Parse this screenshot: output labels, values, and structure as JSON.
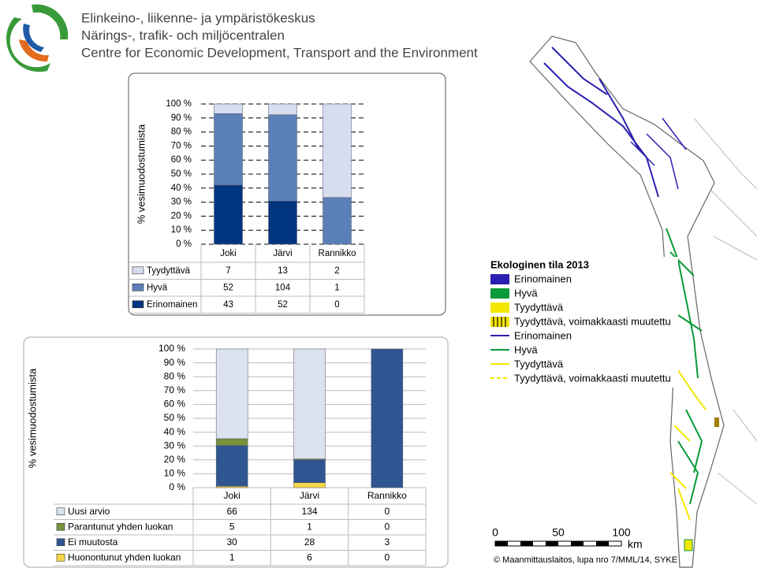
{
  "header": {
    "lines": [
      "Elinkeino-, liikenne- ja ympäristökeskus",
      "Närings-, trafik- och miljöcentralen",
      "Centre for Economic Development, Transport and the Environment"
    ]
  },
  "chart_data": [
    {
      "type": "stacked-percent-bar",
      "y_label": "% vesimuodostumista",
      "categories": [
        "Joki",
        "Järvi",
        "Rannikko"
      ],
      "series": [
        {
          "name": "Erinomainen",
          "color": "#003580",
          "values": [
            43,
            52,
            0
          ]
        },
        {
          "name": "Hyvä",
          "color": "#5b80b8",
          "values": [
            52,
            104,
            1
          ]
        },
        {
          "name": "Tyydyttävä",
          "color": "#d5ddee",
          "values": [
            7,
            13,
            2
          ]
        }
      ],
      "ylim": [
        0,
        100
      ],
      "yticks": [
        {
          "value": 0,
          "label": "0 %"
        },
        {
          "value": 10,
          "label": "10 %"
        },
        {
          "value": 20,
          "label": "20 %"
        },
        {
          "value": 30,
          "label": "30 %"
        },
        {
          "value": 40,
          "label": "40 %"
        },
        {
          "value": 50,
          "label": "50 %"
        },
        {
          "value": 60,
          "label": "60 %"
        },
        {
          "value": 70,
          "label": "70 %"
        },
        {
          "value": 80,
          "label": "80 %"
        },
        {
          "value": 90,
          "label": "90 %"
        },
        {
          "value": 100,
          "label": "100 %"
        }
      ],
      "grid": true
    },
    {
      "type": "stacked-percent-bar",
      "y_label": "% vesimuodostumista",
      "categories": [
        "Joki",
        "Järvi",
        "Rannikko"
      ],
      "series": [
        {
          "name": "Huonontunut yhden luokan",
          "color": "#f6d745",
          "values": [
            1,
            6,
            0
          ]
        },
        {
          "name": "Ei muutosta",
          "color": "#2f5690",
          "values": [
            30,
            28,
            3
          ]
        },
        {
          "name": "Parantunut yhden luokan",
          "color": "#77933c",
          "values": [
            5,
            1,
            0
          ]
        },
        {
          "name": "Uusi arvio",
          "color": "#dce3ef",
          "values": [
            66,
            134,
            0
          ]
        }
      ],
      "ylim": [
        0,
        100
      ],
      "yticks": [
        {
          "value": 0,
          "label": "0 %"
        },
        {
          "value": 10,
          "label": "10 %"
        },
        {
          "value": 20,
          "label": "20 %"
        },
        {
          "value": 30,
          "label": "30 %"
        },
        {
          "value": 40,
          "label": "40 %"
        },
        {
          "value": 50,
          "label": "50 %"
        },
        {
          "value": 60,
          "label": "60 %"
        },
        {
          "value": 70,
          "label": "70 %"
        },
        {
          "value": 80,
          "label": "80 %"
        },
        {
          "value": 90,
          "label": "90 %"
        },
        {
          "value": 100,
          "label": "100 %"
        }
      ],
      "grid": true
    }
  ],
  "map": {
    "legend_title": "Ekologinen tila 2013",
    "legend_items": [
      "Erinomainen",
      "Hyvä",
      "Tyydyttävä",
      "Tyydyttävä, voimakkaasti muutettu",
      "Erinomainen",
      "Hyvä",
      "Tyydyttävä",
      "Tyydyttävä, voimakkaasti muutettu"
    ],
    "scale_labels": [
      "0",
      "50",
      "100",
      "km"
    ],
    "copyright": "© Maanmittauslaitos, lupa nro 7/MML/14, SYKE"
  }
}
